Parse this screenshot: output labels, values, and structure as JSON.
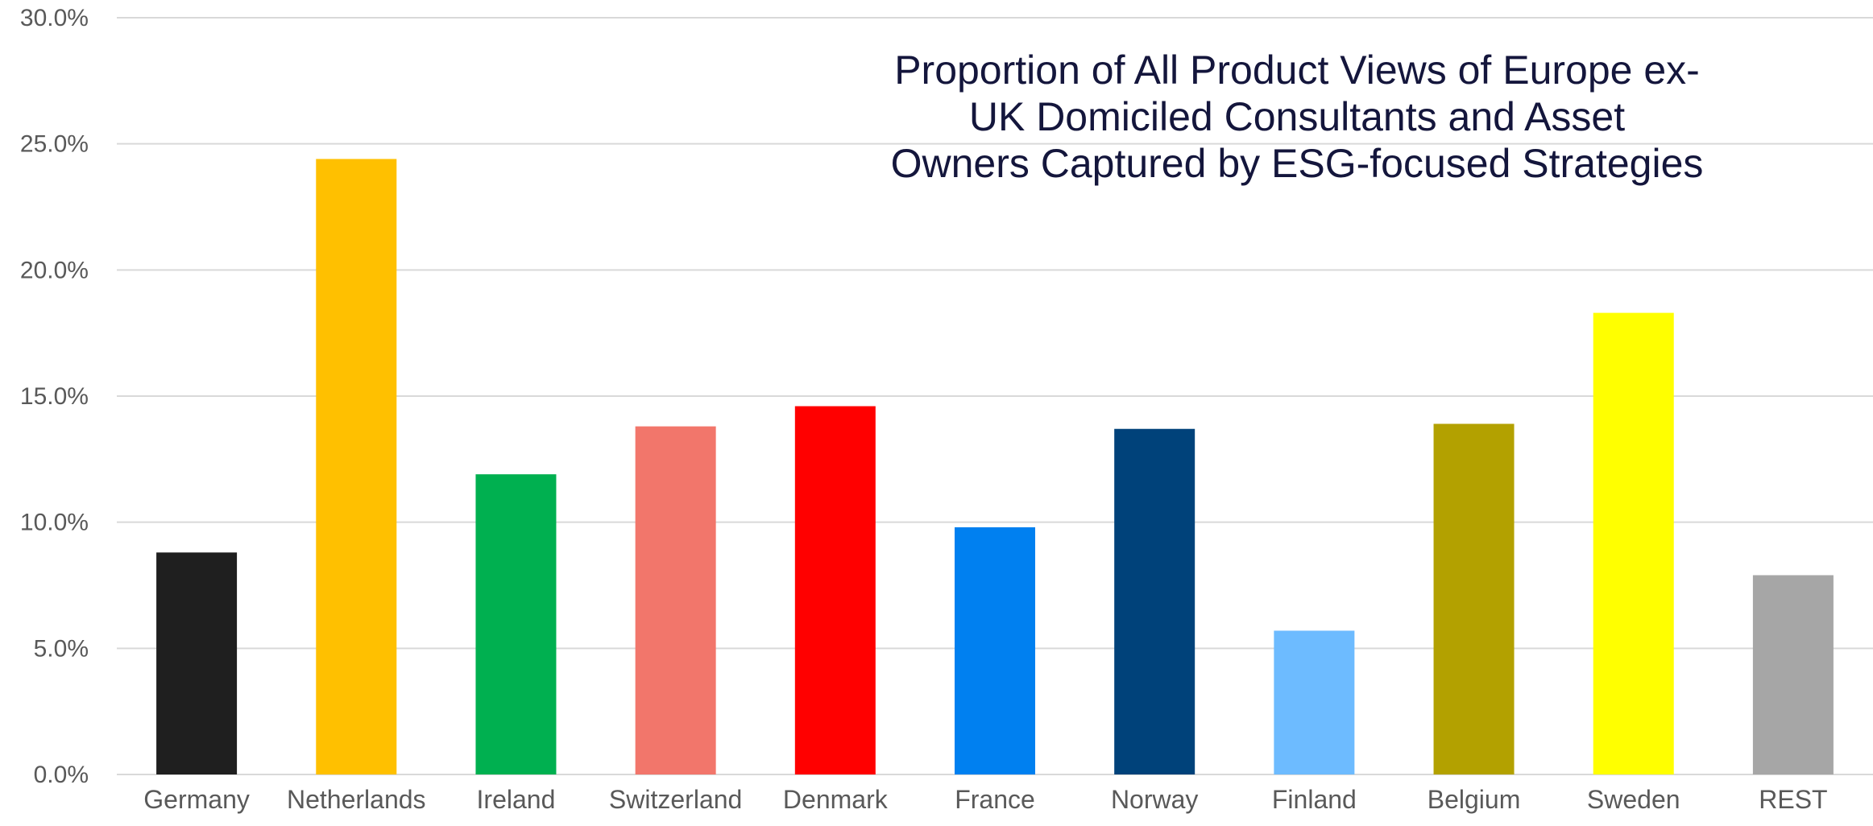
{
  "chart_data": {
    "type": "bar",
    "title": "Proportion of All Product Views of Europe ex-\nUK Domiciled Consultants and Asset\nOwners Captured by ESG-focused Strategies",
    "xlabel": "",
    "ylabel": "",
    "categories": [
      "Germany",
      "Netherlands",
      "Ireland",
      "Switzerland",
      "Denmark",
      "France",
      "Norway",
      "Finland",
      "Belgium",
      "Sweden",
      "REST"
    ],
    "values": [
      8.8,
      24.4,
      11.9,
      13.8,
      14.6,
      9.8,
      13.7,
      5.7,
      13.9,
      18.3,
      7.9
    ],
    "colors": [
      "#1f1f1f",
      "#ffc000",
      "#00b050",
      "#f2766b",
      "#ff0000",
      "#0080f0",
      "#00427a",
      "#6dbbff",
      "#b3a100",
      "#ffff00",
      "#a6a6a6"
    ],
    "ylim": [
      0,
      30
    ],
    "yticks": [
      "0.0%",
      "5.0%",
      "10.0%",
      "15.0%",
      "20.0%",
      "25.0%",
      "30.0%"
    ],
    "grid": true,
    "legend": "none"
  }
}
